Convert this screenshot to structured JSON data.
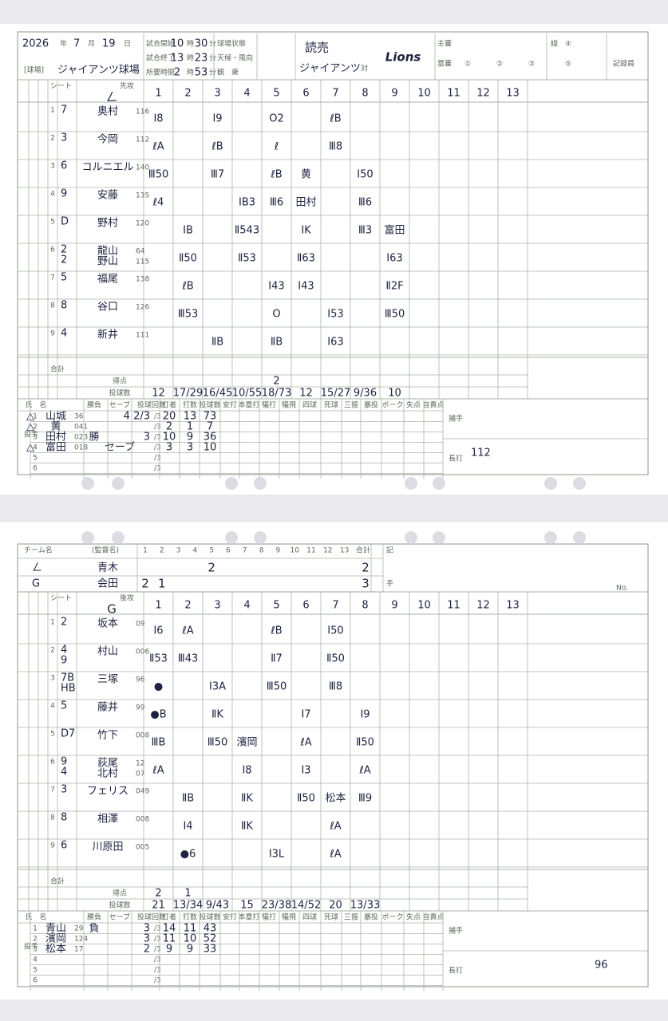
{
  "form": {
    "innings": [
      1,
      2,
      3,
      4,
      5,
      6,
      7,
      8,
      9,
      10,
      11,
      12,
      13
    ],
    "year_label": "年",
    "month_label": "月",
    "day_label": "日",
    "hour": "時",
    "minute": "分",
    "start": "試合開始",
    "end": "試合終了",
    "duration": "所要時間",
    "field_state": "球場状態",
    "weather": "天候・風向",
    "crowd": "観　衆",
    "venue_label": "[球場]",
    "vs": "対",
    "umpire": "主審",
    "base_umpire": "塁審",
    "line": "線",
    "recorder": "記録員",
    "u1": "①",
    "u2": "②",
    "u3": "③",
    "u4": "④",
    "u5": "⑤",
    "seat": "シート",
    "total": "合計",
    "runs": "得点",
    "pitches": "投球数",
    "team_name": "チーム名",
    "manager": "(監督名)",
    "note": "記",
    "hand": "手",
    "no": "No.",
    "pitcher_side": "投手",
    "catcher": "捕手",
    "long_hit": "長打",
    "pitcher_headers": [
      "氏　名",
      "勝負",
      "セーブ",
      "投球回数",
      "打者",
      "打数",
      "投球数",
      "安打",
      "本塁打",
      "犠打",
      "犠飛",
      "四球",
      "死球",
      "三振",
      "暴投",
      "ボーク",
      "失点",
      "自責点"
    ],
    "thirds": "/3",
    "pitcher_rows": [
      1,
      2,
      3,
      4,
      5,
      6
    ]
  },
  "sheets": [
    {
      "header": {
        "year": "2026",
        "month": "7",
        "day": "19",
        "start_h": "10",
        "start_m": "30",
        "end_h": "13",
        "end_m": "23",
        "dur_h": "2",
        "dur_m": "53",
        "venue": "ジャイアンツ球場",
        "home1": "読売",
        "home2": "ジャイアンツ",
        "visitor": "Lions"
      },
      "side": "先攻",
      "team_mark": "ㄥ",
      "batters": [
        {
          "order": 1,
          "pos": [
            "7"
          ],
          "names": [
            "奥村"
          ],
          "nums": [
            "116"
          ],
          "plays": [
            "Ⅰ8",
            null,
            "Ⅰ9",
            null,
            "O2",
            null,
            "ℓB",
            null,
            null,
            null,
            null,
            null,
            null
          ]
        },
        {
          "order": 2,
          "pos": [
            "3"
          ],
          "names": [
            "今岡"
          ],
          "nums": [
            "112"
          ],
          "plays": [
            "ℓA",
            null,
            "ℓB",
            null,
            "ℓ",
            null,
            "Ⅲ8",
            null,
            null,
            null,
            null,
            null,
            null
          ]
        },
        {
          "order": 3,
          "pos": [
            "6"
          ],
          "names": [
            "コルニエル"
          ],
          "nums": [
            "140"
          ],
          "plays": [
            "Ⅲ50",
            null,
            "Ⅲ7",
            null,
            "ℓB",
            "黄",
            null,
            "Ⅰ50",
            null,
            null,
            null,
            null,
            null
          ]
        },
        {
          "order": 4,
          "pos": [
            "9"
          ],
          "names": [
            "安藤"
          ],
          "nums": [
            "135"
          ],
          "plays": [
            "ℓ4",
            null,
            null,
            "ⅠB3",
            "Ⅲ6",
            "田村",
            null,
            "Ⅲ6",
            null,
            null,
            null,
            null,
            null
          ]
        },
        {
          "order": 5,
          "pos": [
            "D"
          ],
          "names": [
            "野村"
          ],
          "nums": [
            "120"
          ],
          "plays": [
            null,
            "ⅠB",
            null,
            "Ⅱ543",
            null,
            "ⅠK",
            null,
            "Ⅲ3",
            "富田",
            null,
            null,
            null,
            null
          ]
        },
        {
          "order": 6,
          "pos": [
            "2",
            "2"
          ],
          "names": [
            "龍山",
            "野山"
          ],
          "nums": [
            "64",
            "115"
          ],
          "plays": [
            null,
            "Ⅱ50",
            null,
            "Ⅱ53",
            null,
            "Ⅱ63",
            null,
            null,
            "Ⅰ63",
            null,
            null,
            null,
            null
          ]
        },
        {
          "order": 7,
          "pos": [
            "5"
          ],
          "names": [
            "福尾"
          ],
          "nums": [
            "138"
          ],
          "plays": [
            null,
            "ℓB",
            null,
            null,
            "Ⅰ43",
            "Ⅰ43",
            null,
            null,
            "Ⅱ2F",
            null,
            null,
            null,
            null
          ]
        },
        {
          "order": 8,
          "pos": [
            "8"
          ],
          "names": [
            "谷口"
          ],
          "nums": [
            "126"
          ],
          "plays": [
            null,
            "Ⅲ53",
            null,
            null,
            "O",
            null,
            "Ⅰ53",
            null,
            "Ⅲ50",
            null,
            null,
            null,
            null
          ]
        },
        {
          "order": 9,
          "pos": [
            "4"
          ],
          "names": [
            "新井"
          ],
          "nums": [
            "111"
          ],
          "plays": [
            null,
            null,
            "ⅡB",
            null,
            "ⅡB",
            null,
            "Ⅰ63",
            null,
            null,
            null,
            null,
            null,
            null
          ]
        }
      ],
      "runs": [
        null,
        null,
        null,
        null,
        "2",
        null,
        null,
        null,
        null,
        null,
        null,
        null,
        null
      ],
      "pitch_counts": [
        "12",
        "17/29",
        "16/45",
        "10/55",
        "18/73",
        "12",
        "15/27",
        "9/36",
        "10",
        null,
        null,
        null,
        null
      ],
      "pitchers": [
        {
          "mark": "△",
          "name": "山城",
          "num": "36",
          "result": null,
          "save": null,
          "ip": "4 2/3",
          "bf": "20",
          "ab": "13",
          "np": "73"
        },
        {
          "mark": "△",
          "name": "黄",
          "num": "041",
          "result": null,
          "save": null,
          "ip": null,
          "bf": "2",
          "ab": "1",
          "np": "7"
        },
        {
          "mark": null,
          "name": "田村",
          "num": "023",
          "result": "勝",
          "save": null,
          "ip": "3",
          "bf": "10",
          "ab": "9",
          "np": "36"
        },
        {
          "mark": "△",
          "name": "富田",
          "num": "018",
          "result": null,
          "save": "セーブ",
          "ip": null,
          "bf": "3",
          "ab": "3",
          "np": "10"
        }
      ],
      "long_hit": "112"
    },
    {
      "team_table": [
        {
          "mark": "ㄥ",
          "manager": "青木",
          "scores": [
            null,
            null,
            null,
            null,
            "2",
            null,
            null,
            null,
            null,
            null,
            null,
            null,
            null
          ],
          "total": "2"
        },
        {
          "mark": "G",
          "manager": "会田",
          "scores": [
            "2",
            "1",
            null,
            null,
            null,
            null,
            null,
            null,
            null,
            null,
            null,
            null,
            null
          ],
          "total": "3"
        }
      ],
      "side": "後攻",
      "team_mark": "G",
      "batters": [
        {
          "order": 1,
          "pos": [
            "2"
          ],
          "names": [
            "坂本"
          ],
          "nums": [
            "09"
          ],
          "plays": [
            "Ⅰ6",
            "ℓA",
            null,
            null,
            "ℓB",
            null,
            "Ⅰ50",
            null,
            null,
            null,
            null,
            null,
            null
          ]
        },
        {
          "order": 2,
          "pos": [
            "4",
            "9"
          ],
          "names": [
            "村山"
          ],
          "nums": [
            "006"
          ],
          "plays": [
            "Ⅱ53",
            "Ⅲ43",
            null,
            null,
            "Ⅱ7",
            null,
            "Ⅱ50",
            null,
            null,
            null,
            null,
            null,
            null
          ]
        },
        {
          "order": 3,
          "pos": [
            "7B",
            "HB"
          ],
          "names": [
            "三塚"
          ],
          "nums": [
            "96"
          ],
          "plays": [
            "●",
            null,
            "Ⅰ3A",
            null,
            "Ⅲ50",
            null,
            "Ⅲ8",
            null,
            null,
            null,
            null,
            null,
            null
          ]
        },
        {
          "order": 4,
          "pos": [
            "5"
          ],
          "names": [
            "藤井"
          ],
          "nums": [
            "99"
          ],
          "plays": [
            "●B",
            null,
            "ⅡK",
            null,
            null,
            "Ⅰ7",
            null,
            "Ⅰ9",
            null,
            null,
            null,
            null,
            null
          ]
        },
        {
          "order": 5,
          "pos": [
            "D7"
          ],
          "names": [
            "竹下"
          ],
          "nums": [
            "008"
          ],
          "plays": [
            "ⅢB",
            null,
            "Ⅲ50",
            "濱岡",
            null,
            "ℓA",
            null,
            "Ⅱ50",
            null,
            null,
            null,
            null,
            null
          ]
        },
        {
          "order": 6,
          "pos": [
            "9",
            "4"
          ],
          "names": [
            "荻尾",
            "北村"
          ],
          "nums": [
            "12",
            "07"
          ],
          "plays": [
            "ℓA",
            null,
            null,
            "Ⅰ8",
            null,
            "Ⅰ3",
            null,
            "ℓA",
            null,
            null,
            null,
            null,
            null
          ]
        },
        {
          "order": 7,
          "pos": [
            "3"
          ],
          "names": [
            "フェリス"
          ],
          "nums": [
            "049"
          ],
          "plays": [
            null,
            "ⅡB",
            null,
            "ⅡK",
            null,
            "Ⅱ50",
            "松本",
            "Ⅲ9",
            null,
            null,
            null,
            null,
            null
          ]
        },
        {
          "order": 8,
          "pos": [
            "8"
          ],
          "names": [
            "相澤"
          ],
          "nums": [
            "008"
          ],
          "plays": [
            null,
            "Ⅰ4",
            null,
            "ⅡK",
            null,
            null,
            "ℓA",
            null,
            null,
            null,
            null,
            null,
            null
          ]
        },
        {
          "order": 9,
          "pos": [
            "6"
          ],
          "names": [
            "川原田"
          ],
          "nums": [
            "005"
          ],
          "plays": [
            null,
            "●6",
            null,
            null,
            "Ⅰ3L",
            null,
            "ℓA",
            null,
            null,
            null,
            null,
            null,
            null
          ]
        }
      ],
      "runs": [
        "2",
        "1",
        null,
        null,
        null,
        null,
        null,
        null,
        null,
        null,
        null,
        null,
        null
      ],
      "pitch_counts": [
        "21",
        "13/34",
        "9/43",
        "15",
        "23/38",
        "14/52",
        "20",
        "13/33",
        null,
        null,
        null,
        null,
        null
      ],
      "pitchers": [
        {
          "mark": null,
          "name": "青山",
          "num": "29",
          "result": "負",
          "save": null,
          "ip": "3",
          "bf": "14",
          "ab": "11",
          "np": "43"
        },
        {
          "mark": null,
          "name": "濱岡",
          "num": "124",
          "result": null,
          "save": null,
          "ip": "3",
          "bf": "11",
          "ab": "10",
          "np": "52"
        },
        {
          "mark": null,
          "name": "松本",
          "num": "17",
          "result": null,
          "save": null,
          "ip": "2",
          "bf": "9",
          "ab": "9",
          "np": "33"
        }
      ],
      "long_hit": "96"
    }
  ]
}
